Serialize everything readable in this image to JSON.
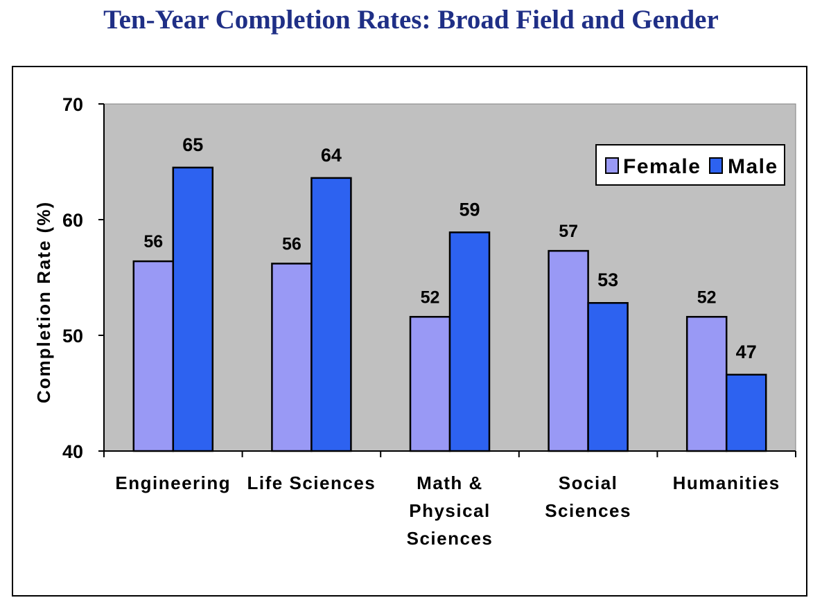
{
  "page": {
    "title": "Ten-Year Completion Rates: Broad Field and Gender"
  },
  "chart_data": {
    "type": "bar",
    "title": "Ten-Year Completion Rates: Broad Field and Gender",
    "ylabel": "Completion Rate (%)",
    "xlabel": "",
    "ylim": [
      40,
      70
    ],
    "yticks": [
      40,
      50,
      60,
      70
    ],
    "categories": [
      [
        "Engineering"
      ],
      [
        "Life Sciences"
      ],
      [
        "Math &",
        "Physical",
        "Sciences"
      ],
      [
        "Social",
        "Sciences"
      ],
      [
        "Humanities"
      ]
    ],
    "series": [
      {
        "name": "Female",
        "color": "#9999f5",
        "values": [
          56.4,
          56.2,
          51.6,
          57.3,
          51.6
        ],
        "labels": [
          "56",
          "56",
          "52",
          "57",
          "52"
        ]
      },
      {
        "name": "Male",
        "color": "#2d62f0",
        "values": [
          64.5,
          63.6,
          58.9,
          52.8,
          46.6
        ],
        "labels": [
          "65",
          "64",
          "59",
          "53",
          "47"
        ]
      }
    ],
    "plot_background": "#c0c0c0",
    "legend_position": "top-right",
    "grid": false
  }
}
